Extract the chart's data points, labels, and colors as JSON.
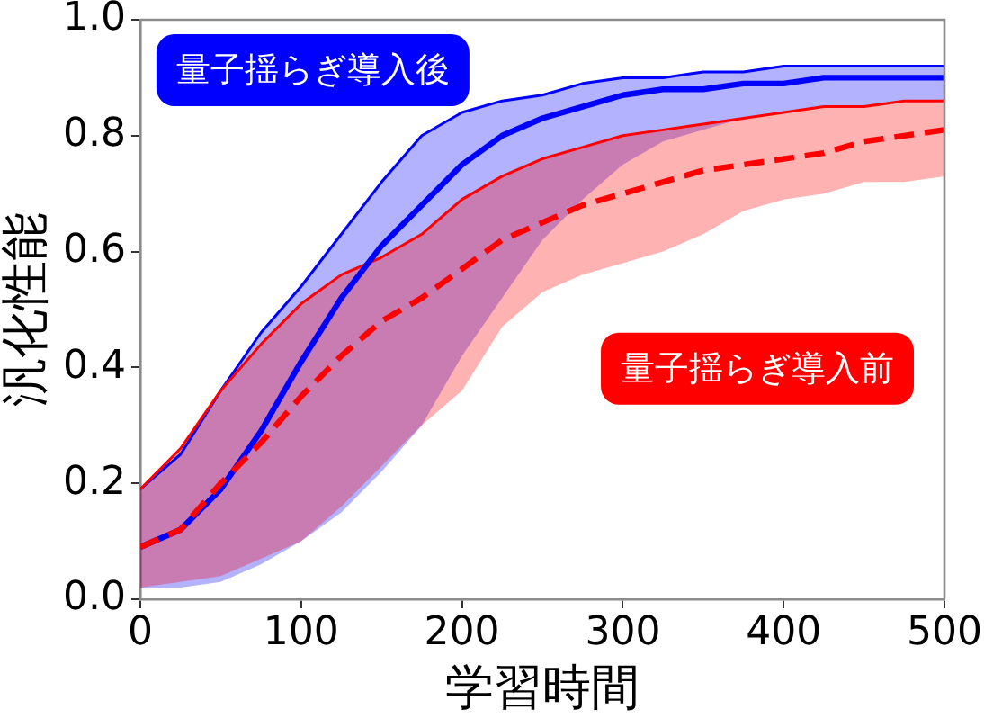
{
  "chart_data": {
    "type": "line",
    "xlabel": "学習時間",
    "ylabel": "汎化性能",
    "x": [
      0,
      25,
      50,
      75,
      100,
      125,
      150,
      175,
      200,
      225,
      250,
      275,
      300,
      325,
      350,
      375,
      400,
      425,
      450,
      475,
      500
    ],
    "series": [
      {
        "color": "#0000ff",
        "values": [
          0.19,
          0.25,
          0.36,
          0.46,
          0.54,
          0.63,
          0.72,
          0.8,
          0.84,
          0.86,
          0.87,
          0.89,
          0.9,
          0.9,
          0.91,
          0.91,
          0.92,
          0.92,
          0.92,
          0.92,
          0.92
        ]
      },
      {
        "color": "#ff0000",
        "values": [
          0.19,
          0.26,
          0.36,
          0.44,
          0.51,
          0.56,
          0.59,
          0.63,
          0.69,
          0.73,
          0.76,
          0.78,
          0.8,
          0.81,
          0.82,
          0.83,
          0.84,
          0.85,
          0.85,
          0.86,
          0.86
        ]
      },
      {
        "name": "量子揺らぎ導入後",
        "color": "#0000ff",
        "values": [
          0.09,
          0.12,
          0.19,
          0.29,
          0.41,
          0.52,
          0.61,
          0.68,
          0.75,
          0.8,
          0.83,
          0.85,
          0.87,
          0.88,
          0.88,
          0.89,
          0.89,
          0.9,
          0.9,
          0.9,
          0.9
        ],
        "lower": [
          0.02,
          0.02,
          0.03,
          0.06,
          0.1,
          0.15,
          0.22,
          0.3,
          0.42,
          0.52,
          0.62,
          0.69,
          0.75,
          0.79,
          0.81,
          0.83,
          0.84,
          0.85,
          0.85,
          0.86,
          0.86
        ],
        "upper": [
          0.19,
          0.25,
          0.36,
          0.46,
          0.54,
          0.63,
          0.72,
          0.8,
          0.84,
          0.86,
          0.87,
          0.89,
          0.9,
          0.9,
          0.91,
          0.91,
          0.92,
          0.92,
          0.92,
          0.92,
          0.92
        ]
      },
      {
        "name": "量子揺らぎ導入前",
        "color": "#ff0000",
        "line_style": "dashed",
        "values": [
          0.09,
          0.12,
          0.2,
          0.27,
          0.35,
          0.42,
          0.48,
          0.52,
          0.57,
          0.62,
          0.65,
          0.68,
          0.7,
          0.72,
          0.74,
          0.75,
          0.76,
          0.77,
          0.79,
          0.8,
          0.81
        ],
        "lower": [
          0.02,
          0.03,
          0.04,
          0.07,
          0.1,
          0.16,
          0.23,
          0.3,
          0.36,
          0.47,
          0.53,
          0.56,
          0.58,
          0.6,
          0.63,
          0.67,
          0.69,
          0.7,
          0.72,
          0.72,
          0.73
        ],
        "upper": [
          0.19,
          0.26,
          0.36,
          0.44,
          0.51,
          0.56,
          0.59,
          0.63,
          0.69,
          0.73,
          0.76,
          0.78,
          0.8,
          0.81,
          0.82,
          0.83,
          0.84,
          0.85,
          0.85,
          0.86,
          0.86
        ]
      }
    ],
    "xlim": [
      0,
      500
    ],
    "xticks": [
      0,
      100,
      200,
      300,
      400,
      500
    ],
    "ylim": [
      0,
      1
    ],
    "yticks": [
      {
        "value": 0,
        "label": "0.0"
      },
      0.2,
      0.4,
      0.6,
      0.8,
      {
        "value": 1,
        "label": "1.0"
      }
    ],
    "marker": "none",
    "grid": false,
    "legend": false
  }
}
